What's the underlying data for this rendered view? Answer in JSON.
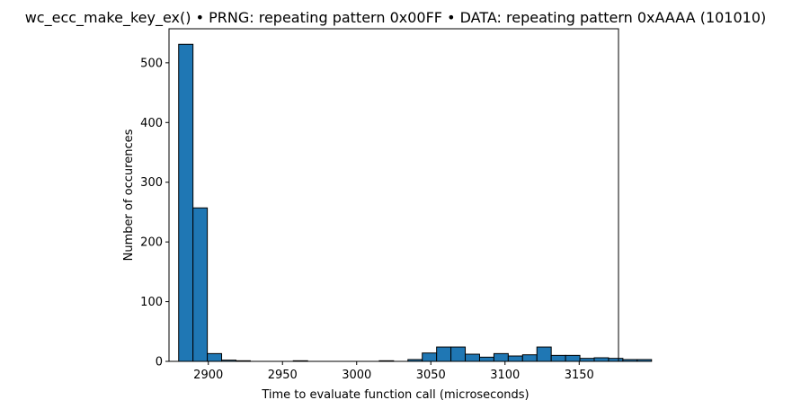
{
  "chart_data": {
    "type": "bar",
    "title": "wc_ecc_make_key_ex() • PRNG: repeating pattern 0x00FF • DATA: repeating pattern 0xAAAA (101010)",
    "xlabel": "Time to evaluate function call (microseconds)",
    "ylabel": "Number of occurences",
    "xlim": [
      2873.5,
      3176.5
    ],
    "ylim": [
      0,
      557
    ],
    "xticks": [
      2900,
      2950,
      3000,
      3050,
      3100,
      3150
    ],
    "yticks": [
      0,
      100,
      200,
      300,
      400,
      500
    ],
    "bin_start": 2880,
    "bin_width": 9.66,
    "values": [
      531,
      257,
      13,
      2,
      1,
      0,
      0,
      0,
      1,
      0,
      0,
      0,
      0,
      0,
      1,
      0,
      3,
      14,
      24,
      24,
      12,
      7,
      13,
      9,
      11,
      24,
      10,
      10,
      5,
      6,
      5,
      3,
      3
    ],
    "bar_color": "#1f77b4",
    "edge_color": "#000000",
    "grid": false,
    "legend": "none"
  }
}
